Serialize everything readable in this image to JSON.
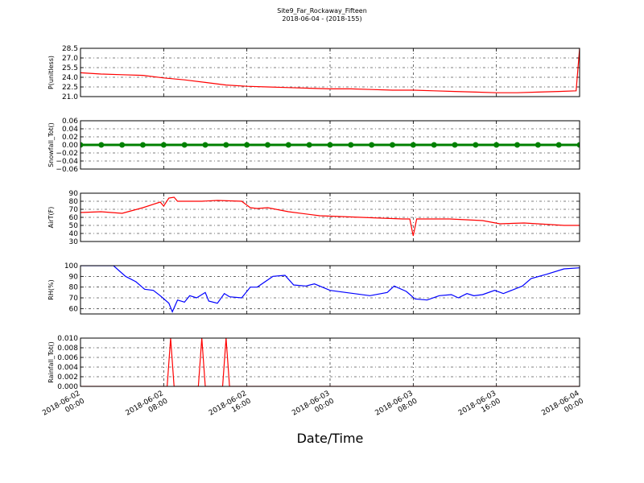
{
  "title": "Site9_Far_Rockaway_Fifteen",
  "subtitle": "2018-06-04 - (2018-155)",
  "xlabel": "Date/Time",
  "chart_data": [
    {
      "type": "line",
      "ylabel": "P(unitless)",
      "color": "#ff0000",
      "grid": true,
      "xlim": [
        "2018-06-02 00:00",
        "2018-06-04 00:00"
      ],
      "xticks": [
        "2018-06-02 00:00",
        "2018-06-02 08:00",
        "2018-06-02 16:00",
        "2018-06-03 00:00",
        "2018-06-03 08:00",
        "2018-06-03 16:00",
        "2018-06-04 00:00"
      ],
      "ylim": [
        21,
        28.5
      ],
      "yticks": [
        {
          "value": 21,
          "label": "21.0"
        },
        22.5,
        {
          "value": 24,
          "label": "24.0"
        },
        25.5,
        {
          "value": 27,
          "label": "27.0"
        },
        28.5
      ],
      "x": [
        "2018-06-02 00:00",
        "2018-06-02 02:00",
        "2018-06-02 04:00",
        "2018-06-02 06:00",
        "2018-06-02 08:00",
        "2018-06-02 10:00",
        "2018-06-02 12:00",
        "2018-06-02 14:00",
        "2018-06-02 16:00",
        "2018-06-02 18:00",
        "2018-06-02 20:00",
        "2018-06-02 22:00",
        "2018-06-03 00:00",
        "2018-06-03 02:00",
        "2018-06-03 04:00",
        "2018-06-03 06:00",
        "2018-06-03 08:00",
        "2018-06-03 10:00",
        "2018-06-03 12:00",
        "2018-06-03 14:00",
        "2018-06-03 16:00",
        "2018-06-03 18:00",
        "2018-06-03 20:00",
        "2018-06-03 22:00",
        "2018-06-03 23:40",
        "2018-06-04 00:00"
      ],
      "values": [
        24.7,
        24.5,
        24.4,
        24.3,
        23.9,
        23.6,
        23.2,
        22.8,
        22.6,
        22.5,
        22.4,
        22.3,
        22.2,
        22.2,
        22.1,
        22.0,
        22.0,
        21.9,
        21.8,
        21.7,
        21.6,
        21.6,
        21.7,
        21.8,
        21.9,
        28.5
      ]
    },
    {
      "type": "line",
      "ylabel": "Snowfall_Tot()",
      "color": "#008000",
      "markers": true,
      "grid": true,
      "xlim": [
        "2018-06-02 00:00",
        "2018-06-04 00:00"
      ],
      "xticks": [
        "2018-06-02 00:00",
        "2018-06-02 08:00",
        "2018-06-02 16:00",
        "2018-06-03 00:00",
        "2018-06-03 08:00",
        "2018-06-03 16:00",
        "2018-06-04 00:00"
      ],
      "ylim": [
        -0.06,
        0.06
      ],
      "yticks": [
        {
          "value": -0.06,
          "label": "−0.06"
        },
        {
          "value": -0.04,
          "label": "−0.04"
        },
        {
          "value": -0.02,
          "label": "−0.02"
        },
        {
          "value": 0,
          "label": "0.00"
        },
        {
          "value": 0.02,
          "label": "0.02"
        },
        {
          "value": 0.04,
          "label": "0.04"
        },
        {
          "value": 0.06,
          "label": "0.06"
        }
      ],
      "x": [
        "2018-06-02 00:00",
        "2018-06-02 02:00",
        "2018-06-02 04:00",
        "2018-06-02 06:00",
        "2018-06-02 08:00",
        "2018-06-02 10:00",
        "2018-06-02 12:00",
        "2018-06-02 14:00",
        "2018-06-02 16:00",
        "2018-06-02 18:00",
        "2018-06-02 20:00",
        "2018-06-02 22:00",
        "2018-06-03 00:00",
        "2018-06-03 02:00",
        "2018-06-03 04:00",
        "2018-06-03 06:00",
        "2018-06-03 08:00",
        "2018-06-03 10:00",
        "2018-06-03 12:00",
        "2018-06-03 14:00",
        "2018-06-03 16:00",
        "2018-06-03 18:00",
        "2018-06-03 20:00",
        "2018-06-03 22:00",
        "2018-06-04 00:00"
      ],
      "values": [
        0,
        0,
        0,
        0,
        0,
        0,
        0,
        0,
        0,
        0,
        0,
        0,
        0,
        0,
        0,
        0,
        0,
        0,
        0,
        0,
        0,
        0,
        0,
        0,
        0
      ]
    },
    {
      "type": "line",
      "ylabel": "AirT(F)",
      "color": "#ff0000",
      "grid": true,
      "xlim": [
        "2018-06-02 00:00",
        "2018-06-04 00:00"
      ],
      "xticks": [
        "2018-06-02 00:00",
        "2018-06-02 08:00",
        "2018-06-02 16:00",
        "2018-06-03 00:00",
        "2018-06-03 08:00",
        "2018-06-03 16:00",
        "2018-06-04 00:00"
      ],
      "ylim": [
        30,
        90
      ],
      "yticks": [
        30,
        40,
        50,
        60,
        70,
        80,
        90
      ],
      "x": [
        "2018-06-02 00:00",
        "2018-06-02 02:00",
        "2018-06-02 04:00",
        "2018-06-02 06:00",
        "2018-06-02 07:40",
        "2018-06-02 08:00",
        "2018-06-02 08:30",
        "2018-06-02 09:00",
        "2018-06-02 09:20",
        "2018-06-02 11:40",
        "2018-06-02 13:10",
        "2018-06-02 15:30",
        "2018-06-02 16:20",
        "2018-06-02 17:00",
        "2018-06-02 18:00",
        "2018-06-02 20:00",
        "2018-06-02 23:00",
        "2018-06-03 03:00",
        "2018-06-03 07:00",
        "2018-06-03 07:40",
        "2018-06-03 08:00",
        "2018-06-03 08:20",
        "2018-06-03 11:30",
        "2018-06-03 14:40",
        "2018-06-03 16:20",
        "2018-06-03 18:40",
        "2018-06-03 22:30",
        "2018-06-04 00:00"
      ],
      "values": [
        66,
        67,
        65,
        72,
        79,
        74,
        84,
        85,
        80,
        80,
        81,
        80,
        72,
        71,
        72,
        67,
        62,
        60,
        58,
        58,
        37,
        58,
        58,
        56,
        52,
        53,
        50,
        50
      ]
    },
    {
      "type": "line",
      "ylabel": "RH(%)",
      "color": "#0000ff",
      "grid": true,
      "xlim": [
        "2018-06-02 00:00",
        "2018-06-04 00:00"
      ],
      "xticks": [
        "2018-06-02 00:00",
        "2018-06-02 08:00",
        "2018-06-02 16:00",
        "2018-06-03 00:00",
        "2018-06-03 08:00",
        "2018-06-03 16:00",
        "2018-06-04 00:00"
      ],
      "ylim": [
        55,
        100
      ],
      "yticks": [
        60,
        70,
        80,
        90,
        100
      ],
      "x": [
        "2018-06-02 00:00",
        "2018-06-02 03:10",
        "2018-06-02 04:20",
        "2018-06-02 05:20",
        "2018-06-02 06:10",
        "2018-06-02 07:00",
        "2018-06-02 07:40",
        "2018-06-02 08:30",
        "2018-06-02 08:50",
        "2018-06-02 09:20",
        "2018-06-02 10:00",
        "2018-06-02 10:30",
        "2018-06-02 11:10",
        "2018-06-02 12:00",
        "2018-06-02 12:20",
        "2018-06-02 13:10",
        "2018-06-02 13:50",
        "2018-06-02 14:20",
        "2018-06-02 15:30",
        "2018-06-02 16:20",
        "2018-06-02 17:00",
        "2018-06-02 18:30",
        "2018-06-02 19:40",
        "2018-06-02 20:30",
        "2018-06-02 21:40",
        "2018-06-02 22:30",
        "2018-06-03 00:00",
        "2018-06-03 01:30",
        "2018-06-03 03:50",
        "2018-06-03 05:30",
        "2018-06-03 06:10",
        "2018-06-03 07:20",
        "2018-06-03 08:10",
        "2018-06-03 09:20",
        "2018-06-03 10:30",
        "2018-06-03 11:40",
        "2018-06-03 12:20",
        "2018-06-03 13:10",
        "2018-06-03 13:50",
        "2018-06-03 14:40",
        "2018-06-03 15:50",
        "2018-06-03 16:40",
        "2018-06-03 18:30",
        "2018-06-03 19:20",
        "2018-06-03 20:50",
        "2018-06-03 22:30",
        "2018-06-04 00:00"
      ],
      "values": [
        100,
        100,
        90,
        85,
        78,
        77,
        72,
        65,
        57,
        68,
        66,
        72,
        70,
        75,
        67,
        65,
        74,
        71,
        70,
        80,
        80,
        90,
        91,
        82,
        81,
        83,
        77,
        75,
        72,
        75,
        81,
        76,
        69,
        68,
        72,
        73,
        70,
        74,
        72,
        73,
        77,
        74,
        81,
        88,
        92,
        97,
        98
      ]
    },
    {
      "type": "line",
      "ylabel": "Rainfall_Tot()",
      "color": "#ff0000",
      "grid": true,
      "xlim": [
        "2018-06-02 00:00",
        "2018-06-04 00:00"
      ],
      "xticks": [
        "2018-06-02 00:00",
        "2018-06-02 08:00",
        "2018-06-02 16:00",
        "2018-06-03 00:00",
        "2018-06-03 08:00",
        "2018-06-03 16:00",
        "2018-06-04 00:00"
      ],
      "ylim": [
        0,
        0.01
      ],
      "yticks": [
        {
          "value": 0,
          "label": "0.000"
        },
        {
          "value": 0.002,
          "label": "0.002"
        },
        {
          "value": 0.004,
          "label": "0.004"
        },
        {
          "value": 0.006,
          "label": "0.006"
        },
        {
          "value": 0.008,
          "label": "0.008"
        },
        {
          "value": 0.01,
          "label": "0.010"
        }
      ],
      "x": [
        "2018-06-02 00:00",
        "2018-06-02 08:20",
        "2018-06-02 08:40",
        "2018-06-02 09:00",
        "2018-06-02 11:20",
        "2018-06-02 11:40",
        "2018-06-02 12:00",
        "2018-06-02 13:40",
        "2018-06-02 14:00",
        "2018-06-02 14:20",
        "2018-06-04 00:00"
      ],
      "values": [
        0,
        0,
        0.01,
        0,
        0,
        0.01,
        0,
        0,
        0.01,
        0,
        0
      ]
    }
  ]
}
